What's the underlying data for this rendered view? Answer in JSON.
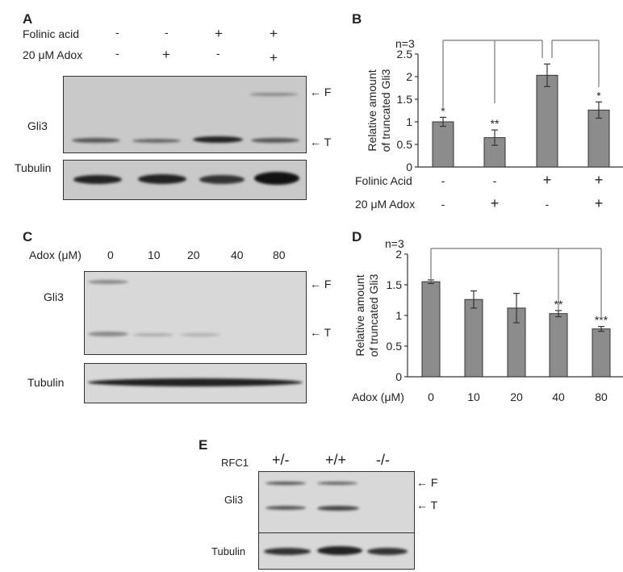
{
  "panel_a": {
    "letter": "A",
    "rows": [
      {
        "label": "Folinic acid",
        "values": [
          "-",
          "-",
          "+",
          "+"
        ]
      },
      {
        "label": "20 μM Adox",
        "values": [
          "-",
          "+",
          "-",
          "+"
        ]
      }
    ],
    "gel_label": "Gli3",
    "loading_label": "Tubulin",
    "marker_f": "F",
    "marker_t": "T"
  },
  "panel_c": {
    "letter": "C",
    "row_label": "Adox (μM)",
    "values": [
      "0",
      "10",
      "20",
      "40",
      "80"
    ],
    "gel_label": "Gli3",
    "loading_label": "Tubulin",
    "marker_f": "F",
    "marker_t": "T"
  },
  "panel_e": {
    "letter": "E",
    "row_label": "RFC1",
    "values": [
      "+/-",
      "+/+",
      "-/-"
    ],
    "gel_label": "Gli3",
    "loading_label": "Tubulin",
    "marker_f": "F",
    "marker_t": "T"
  },
  "chart_data": [
    {
      "panel": "B",
      "type": "bar",
      "ylabel": [
        "Relative amount",
        "of truncated Gli3"
      ],
      "annotation": "n=3",
      "ylim": [
        0,
        2.5
      ],
      "yticks": [
        "0",
        "0.5",
        "1",
        "1.5",
        "2",
        "2.5"
      ],
      "condition_rows": [
        {
          "label": "Folinic Acid",
          "values": [
            "-",
            "-",
            "+",
            "+"
          ]
        },
        {
          "label": "20 μM Adox",
          "values": [
            "-",
            "+",
            "-",
            "+"
          ]
        }
      ],
      "values": [
        1.0,
        0.65,
        2.03,
        1.26
      ],
      "errors": [
        0.1,
        0.17,
        0.25,
        0.18
      ],
      "significance": [
        "*",
        "**",
        "",
        "*"
      ],
      "bar_color": "#8c8c8c"
    },
    {
      "panel": "D",
      "type": "bar",
      "ylabel": [
        "Relative amount",
        "of truncated Gli3"
      ],
      "annotation": "n=3",
      "ylim": [
        0,
        2
      ],
      "yticks": [
        "0",
        "0.5",
        "1",
        "1.5",
        "2"
      ],
      "xlabel": "Adox (μM)",
      "categories": [
        "0",
        "10",
        "20",
        "40",
        "80"
      ],
      "values": [
        1.55,
        1.26,
        1.12,
        1.03,
        0.78
      ],
      "errors": [
        0.03,
        0.14,
        0.24,
        0.05,
        0.04
      ],
      "significance": [
        "",
        "",
        "",
        "**",
        "***"
      ],
      "bar_color": "#8c8c8c"
    }
  ]
}
